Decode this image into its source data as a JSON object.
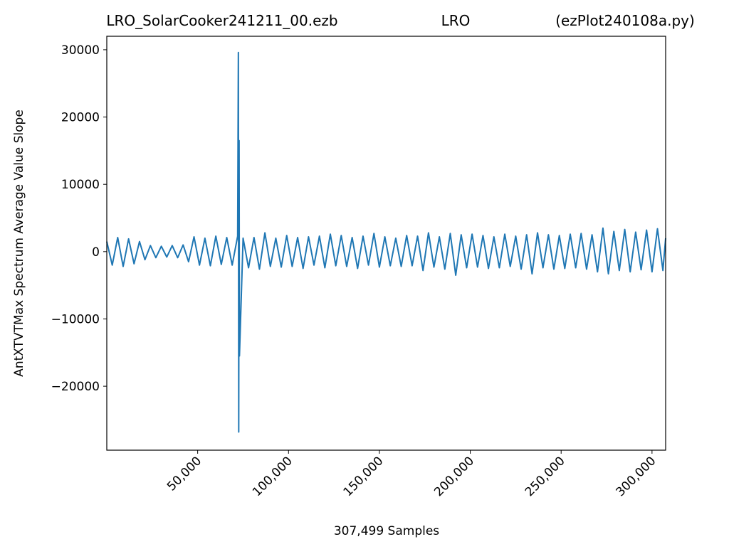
{
  "chart_data": {
    "type": "line",
    "title_parts": [
      "LRO_SolarCooker241211_00.ezb",
      "LRO",
      "(ezPlot240108a.py)"
    ],
    "xlabel": "307,499 Samples",
    "ylabel": "AntXTVTMax Spectrum Average Value Slope",
    "xlim": [
      0,
      307499
    ],
    "ylim": [
      -29500,
      32000
    ],
    "xticks": [
      {
        "value": 50000,
        "label": "50,000"
      },
      {
        "value": 100000,
        "label": "100,000"
      },
      {
        "value": 150000,
        "label": "150,000"
      },
      {
        "value": 200000,
        "label": "200,000"
      },
      {
        "value": 250000,
        "label": "250,000"
      },
      {
        "value": 300000,
        "label": "300,000"
      }
    ],
    "yticks": [
      {
        "value": -20000,
        "label": "−20000"
      },
      {
        "value": -10000,
        "label": "−10000"
      },
      0,
      10000,
      20000,
      30000
    ],
    "series": [
      {
        "color": "#1f77b4",
        "x": [
          0,
          3000,
          6000,
          9000,
          12000,
          15000,
          18000,
          21000,
          24000,
          27000,
          30000,
          33000,
          36000,
          39000,
          42000,
          45000,
          48000,
          51000,
          54000,
          57000,
          60000,
          63000,
          66000,
          69000,
          72000,
          72400,
          72600,
          72800,
          73000,
          75000,
          78000,
          81000,
          84000,
          87000,
          90000,
          93000,
          96000,
          99000,
          102000,
          105000,
          108000,
          111000,
          114000,
          117000,
          120000,
          123000,
          126000,
          129000,
          132000,
          135000,
          138000,
          141000,
          144000,
          147000,
          150000,
          153000,
          156000,
          159000,
          162000,
          165000,
          168000,
          171000,
          174000,
          177000,
          180000,
          183000,
          186000,
          189000,
          192000,
          195000,
          198000,
          201000,
          204000,
          207000,
          210000,
          213000,
          216000,
          219000,
          222000,
          225000,
          228000,
          231000,
          234000,
          237000,
          240000,
          243000,
          246000,
          249000,
          252000,
          255000,
          258000,
          261000,
          264000,
          267000,
          270000,
          273000,
          276000,
          279000,
          282000,
          285000,
          288000,
          291000,
          294000,
          297000,
          300000,
          303000,
          306000,
          307499
        ],
        "values": [
          1500,
          -2000,
          2100,
          -2200,
          1900,
          -1800,
          1500,
          -1200,
          900,
          -900,
          800,
          -800,
          900,
          -900,
          1000,
          -1500,
          2200,
          -2000,
          2000,
          -2100,
          2300,
          -1900,
          2100,
          -2000,
          2300,
          29600,
          -26800,
          16500,
          -15500,
          2000,
          -2400,
          2100,
          -2600,
          2800,
          -2200,
          2000,
          -2300,
          2400,
          -2200,
          2100,
          -2500,
          2200,
          -2000,
          2300,
          -2400,
          2600,
          -2100,
          2400,
          -2200,
          2100,
          -2500,
          2300,
          -2000,
          2700,
          -2300,
          2200,
          -2100,
          2000,
          -2200,
          2400,
          -2100,
          2300,
          -2800,
          2800,
          -2300,
          2200,
          -2600,
          2700,
          -3500,
          2500,
          -2400,
          2600,
          -2300,
          2400,
          -2500,
          2200,
          -2400,
          2600,
          -2200,
          2300,
          -2600,
          2500,
          -3300,
          2800,
          -2400,
          2500,
          -2600,
          2400,
          -2500,
          2600,
          -2400,
          2700,
          -2600,
          2500,
          -3000,
          3500,
          -3300,
          3000,
          -2800,
          3300,
          -3000,
          2900,
          -2700,
          3200,
          -3000,
          3400,
          -2800,
          2000
        ]
      }
    ]
  }
}
